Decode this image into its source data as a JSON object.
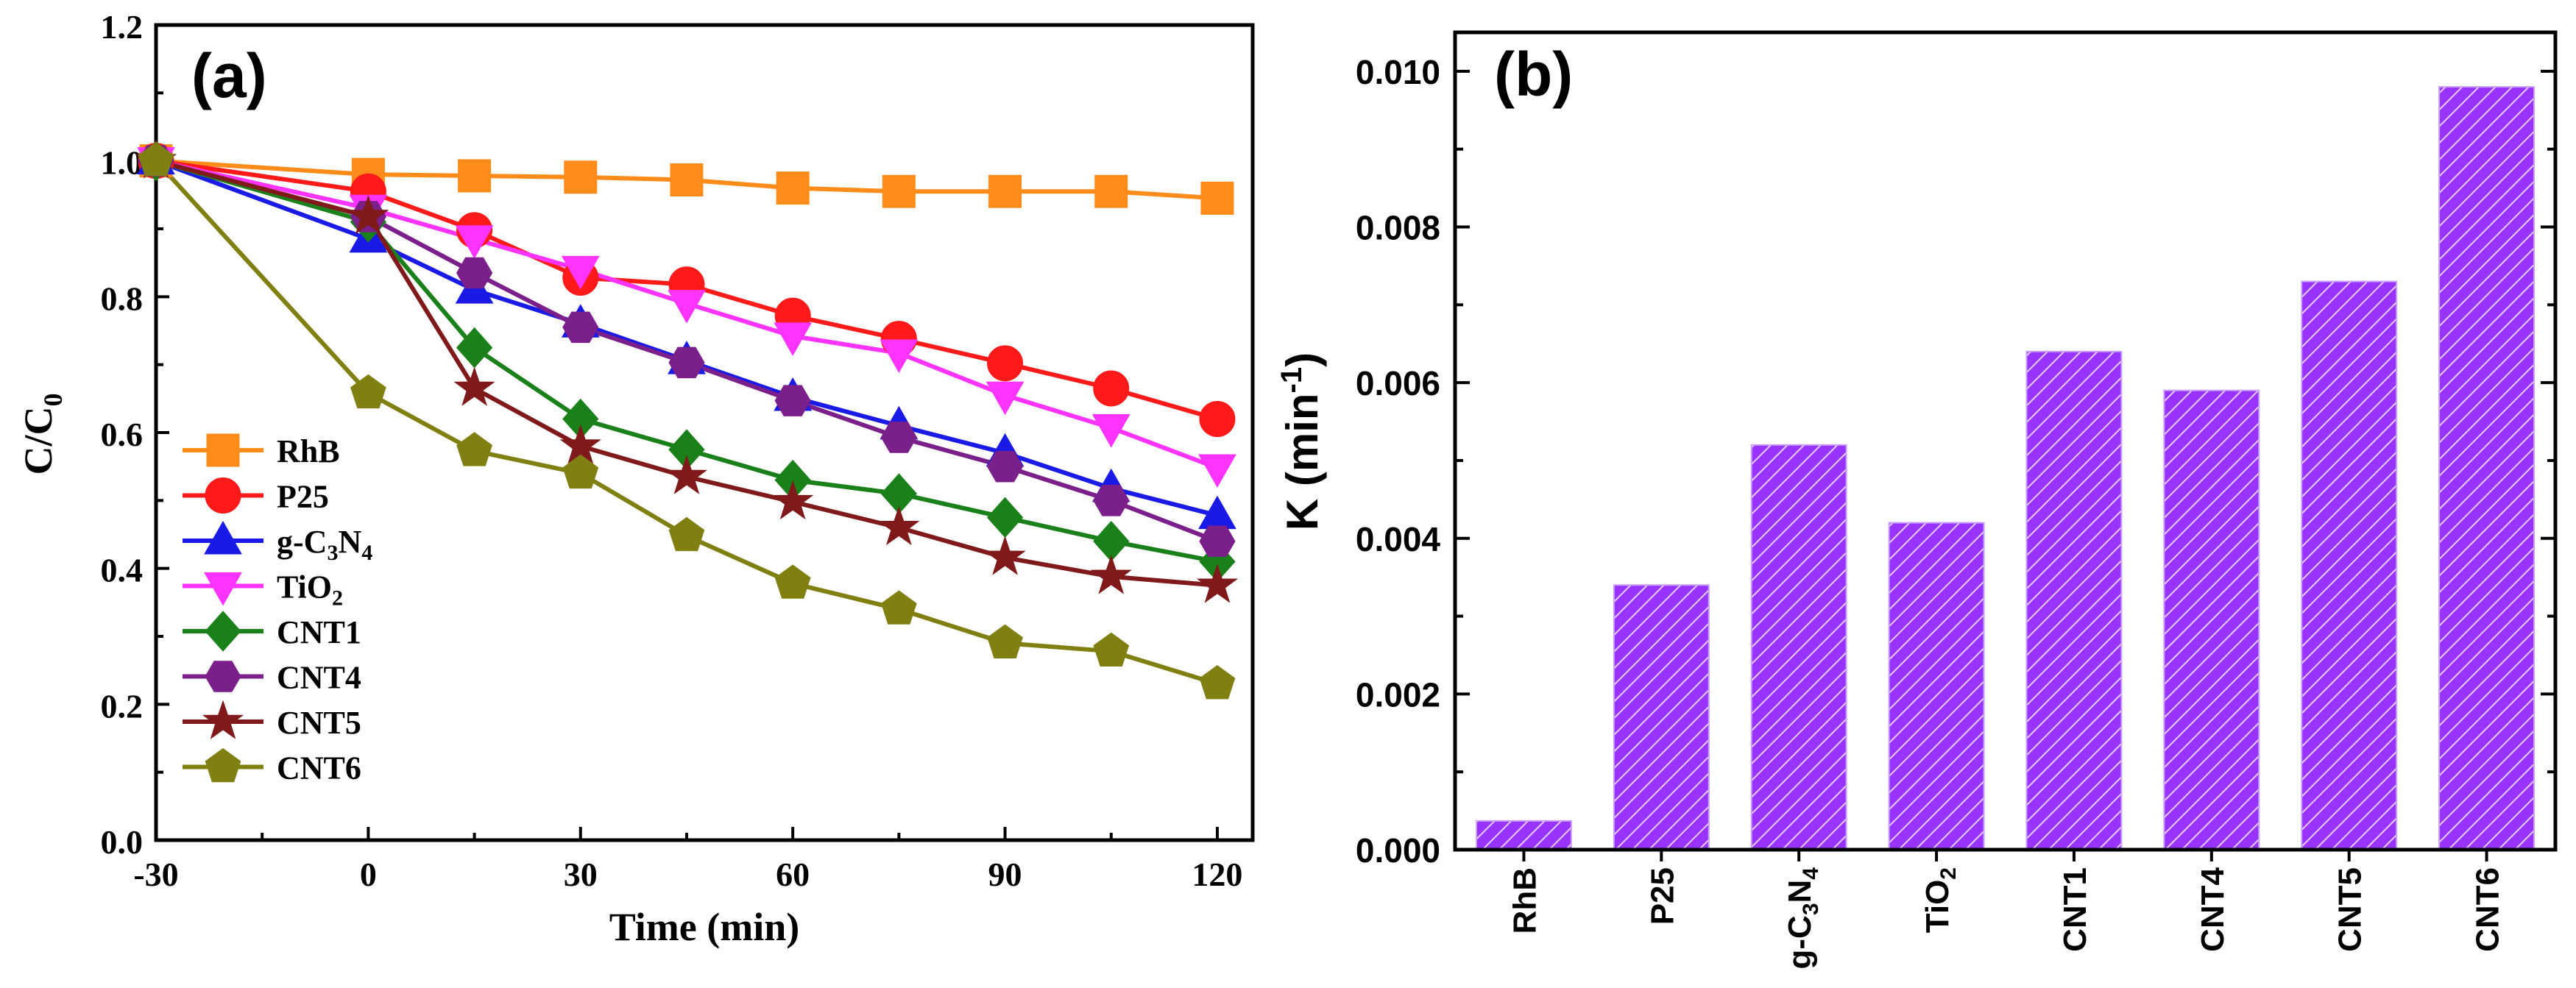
{
  "chart_data": [
    {
      "id": "a",
      "type": "line",
      "panel_label": "(a)",
      "xlabel": "Time (min)",
      "ylabel": {
        "main": "C/C",
        "sub": "0"
      },
      "xlim": [
        -30,
        125
      ],
      "ylim": [
        0.0,
        1.2
      ],
      "xticks": [
        -30,
        0,
        30,
        60,
        90,
        120
      ],
      "xtick_labels": [
        "-30",
        "0",
        "30",
        "60",
        "90",
        "120"
      ],
      "yticks": [
        0.0,
        0.2,
        0.4,
        0.6,
        0.8,
        1.0,
        1.2
      ],
      "ytick_labels": [
        "0.0",
        "0.2",
        "0.4",
        "0.6",
        "0.8",
        "1.0",
        "1.2"
      ],
      "x": [
        -30,
        0,
        15,
        30,
        45,
        60,
        75,
        90,
        105,
        120
      ],
      "legend_position": "left",
      "series": [
        {
          "name": "RhB",
          "label_main": "RhB",
          "color": "#FF8C1A",
          "marker": "square",
          "values": [
            1.0,
            0.98,
            0.978,
            0.976,
            0.972,
            0.96,
            0.955,
            0.955,
            0.955,
            0.945
          ]
        },
        {
          "name": "P25",
          "label_main": "P25",
          "color": "#FF1A1A",
          "marker": "circle",
          "values": [
            1.0,
            0.955,
            0.898,
            0.828,
            0.818,
            0.772,
            0.738,
            0.702,
            0.665,
            0.62
          ]
        },
        {
          "name": "g-C3N4",
          "label_main": "g-C",
          "label_sub1": "3",
          "label_mid": "N",
          "label_sub2": "4",
          "color": "#1A1AE6",
          "marker": "triangle",
          "values": [
            1.0,
            0.885,
            0.81,
            0.76,
            0.706,
            0.652,
            0.61,
            0.57,
            0.518,
            0.478
          ]
        },
        {
          "name": "TiO2",
          "label_main": "TiO",
          "label_sub1": "2",
          "color": "#FF33FF",
          "marker": "triangle-down",
          "values": [
            1.0,
            0.93,
            0.885,
            0.84,
            0.79,
            0.742,
            0.717,
            0.655,
            0.607,
            0.548
          ]
        },
        {
          "name": "CNT1",
          "label_main": "CNT1",
          "color": "#1A801A",
          "marker": "diamond",
          "values": [
            1.0,
            0.91,
            0.725,
            0.62,
            0.575,
            0.53,
            0.51,
            0.475,
            0.44,
            0.41
          ]
        },
        {
          "name": "CNT4",
          "label_main": "CNT4",
          "color": "#7B1F8A",
          "marker": "hexagon",
          "values": [
            1.0,
            0.918,
            0.835,
            0.755,
            0.703,
            0.647,
            0.593,
            0.55,
            0.5,
            0.44
          ]
        },
        {
          "name": "CNT5",
          "label_main": "CNT5",
          "color": "#801A1A",
          "marker": "star",
          "values": [
            1.0,
            0.918,
            0.665,
            0.58,
            0.535,
            0.498,
            0.46,
            0.416,
            0.388,
            0.375
          ]
        },
        {
          "name": "CNT6",
          "label_main": "CNT6",
          "color": "#808012",
          "marker": "pentagon",
          "values": [
            1.0,
            0.658,
            0.573,
            0.54,
            0.448,
            0.378,
            0.34,
            0.29,
            0.278,
            0.23
          ]
        }
      ]
    },
    {
      "id": "b",
      "type": "bar",
      "panel_label": "(b)",
      "ylabel": {
        "main": "K (min",
        "sup": "-1",
        "end": ")"
      },
      "ylim": [
        0.0,
        0.0105
      ],
      "yticks": [
        0.0,
        0.002,
        0.004,
        0.006,
        0.008,
        0.01
      ],
      "ytick_labels": [
        "0.000",
        "0.002",
        "0.004",
        "0.006",
        "0.008",
        "0.010"
      ],
      "bar_color": "#9933FF",
      "categories": [
        {
          "name": "RhB",
          "label_main": "RhB"
        },
        {
          "name": "P25",
          "label_main": "P25"
        },
        {
          "name": "g-C3N4",
          "label_main": "g-C",
          "label_sub1": "3",
          "label_mid": "N",
          "label_sub2": "4"
        },
        {
          "name": "TiO2",
          "label_main": "TiO",
          "label_sub1": "2"
        },
        {
          "name": "CNT1",
          "label_main": "CNT1"
        },
        {
          "name": "CNT4",
          "label_main": "CNT4"
        },
        {
          "name": "CNT5",
          "label_main": "CNT5"
        },
        {
          "name": "CNT6",
          "label_main": "CNT6"
        }
      ],
      "values": [
        0.00037,
        0.0034,
        0.0052,
        0.0042,
        0.0064,
        0.0059,
        0.0073,
        0.0098
      ]
    }
  ]
}
